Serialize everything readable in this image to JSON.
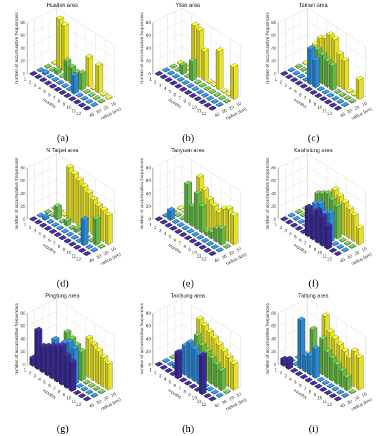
{
  "figure": {
    "zlabel": "number of accumulative frequencies",
    "xlabel": "months",
    "ylabel": "radius (km)",
    "month_ticks": [
      "1",
      "2",
      "3",
      "4",
      "5",
      "6",
      "7",
      "8",
      "9",
      "10",
      "11",
      "12"
    ],
    "radius_ticks": [
      "40",
      "30",
      "20",
      "10"
    ],
    "z_ticks": [
      "0",
      "20",
      "40",
      "60",
      "80"
    ],
    "colors": {
      "r40": "#3b2a9b",
      "r30": "#2b8fe0",
      "r20": "#6cc24a",
      "r10": "#f2ee2e"
    }
  },
  "chart_data": [
    {
      "type": "bar3d",
      "title": "Hualien area",
      "caption": "(a)",
      "zlim": [
        0,
        80
      ],
      "radii": [
        40,
        30,
        20,
        10
      ],
      "months": [
        1,
        2,
        3,
        4,
        5,
        6,
        7,
        8,
        9,
        10,
        11,
        12
      ],
      "series": [
        {
          "radius": 40,
          "values": [
            1,
            1,
            1,
            1,
            1,
            1,
            1,
            1,
            1,
            1,
            1,
            1
          ]
        },
        {
          "radius": 30,
          "values": [
            1,
            3,
            1,
            1,
            1,
            1,
            1,
            28,
            1,
            1,
            1,
            1
          ]
        },
        {
          "radius": 20,
          "values": [
            1,
            1,
            6,
            1,
            30,
            25,
            22,
            26,
            1,
            1,
            1,
            1
          ]
        },
        {
          "radius": 10,
          "values": [
            1,
            75,
            70,
            1,
            1,
            1,
            1,
            45,
            1,
            42,
            1,
            1
          ]
        }
      ]
    },
    {
      "type": "bar3d",
      "title": "Yilan area",
      "caption": "(b)",
      "zlim": [
        0,
        80
      ],
      "radii": [
        40,
        30,
        20,
        10
      ],
      "months": [
        1,
        2,
        3,
        4,
        5,
        6,
        7,
        8,
        9,
        10,
        11,
        12
      ],
      "series": [
        {
          "radius": 40,
          "values": [
            1,
            1,
            1,
            1,
            1,
            1,
            1,
            1,
            1,
            1,
            1,
            1
          ]
        },
        {
          "radius": 30,
          "values": [
            1,
            1,
            1,
            1,
            1,
            1,
            1,
            1,
            1,
            1,
            1,
            1
          ]
        },
        {
          "radius": 20,
          "values": [
            1,
            1,
            14,
            1,
            30,
            1,
            1,
            1,
            1,
            1,
            1,
            1
          ]
        },
        {
          "radius": 10,
          "values": [
            1,
            1,
            1,
            75,
            72,
            45,
            1,
            1,
            60,
            1,
            1,
            50
          ]
        }
      ]
    },
    {
      "type": "bar3d",
      "title": "Tainan area",
      "caption": "(c)",
      "zlim": [
        0,
        80
      ],
      "radii": [
        40,
        30,
        20,
        10
      ],
      "months": [
        1,
        2,
        3,
        4,
        5,
        6,
        7,
        8,
        9,
        10,
        11,
        12
      ],
      "series": [
        {
          "radius": 40,
          "values": [
            1,
            1,
            1,
            1,
            1,
            1,
            1,
            1,
            1,
            1,
            1,
            1
          ]
        },
        {
          "radius": 30,
          "values": [
            1,
            1,
            1,
            1,
            55,
            42,
            1,
            1,
            1,
            1,
            1,
            1
          ]
        },
        {
          "radius": 20,
          "values": [
            1,
            1,
            1,
            35,
            48,
            45,
            40,
            38,
            1,
            1,
            1,
            1
          ]
        },
        {
          "radius": 10,
          "values": [
            1,
            1,
            40,
            55,
            60,
            70,
            68,
            50,
            45,
            1,
            1,
            30
          ]
        }
      ]
    },
    {
      "type": "bar3d",
      "title": "N.Taipei area",
      "caption": "(d)",
      "zlim": [
        0,
        80
      ],
      "radii": [
        40,
        30,
        20,
        10
      ],
      "months": [
        1,
        2,
        3,
        4,
        5,
        6,
        7,
        8,
        9,
        10,
        11,
        12
      ],
      "series": [
        {
          "radius": 40,
          "values": [
            1,
            1,
            1,
            1,
            1,
            1,
            1,
            1,
            1,
            1,
            1,
            1
          ]
        },
        {
          "radius": 30,
          "values": [
            1,
            5,
            1,
            1,
            1,
            1,
            1,
            1,
            1,
            40,
            1,
            1
          ]
        },
        {
          "radius": 20,
          "values": [
            1,
            1,
            20,
            1,
            8,
            1,
            5,
            1,
            1,
            1,
            40,
            1
          ]
        },
        {
          "radius": 10,
          "values": [
            1,
            1,
            1,
            80,
            75,
            70,
            65,
            60,
            55,
            50,
            48,
            45
          ]
        }
      ]
    },
    {
      "type": "bar3d",
      "title": "Taoyuan area",
      "caption": "(e)",
      "zlim": [
        0,
        80
      ],
      "radii": [
        40,
        30,
        20,
        10
      ],
      "months": [
        1,
        2,
        3,
        4,
        5,
        6,
        7,
        8,
        9,
        10,
        11,
        12
      ],
      "series": [
        {
          "radius": 40,
          "values": [
            1,
            1,
            1,
            1,
            1,
            1,
            1,
            1,
            1,
            1,
            1,
            1
          ]
        },
        {
          "radius": 30,
          "values": [
            1,
            15,
            1,
            1,
            1,
            1,
            1,
            1,
            1,
            1,
            1,
            1
          ]
        },
        {
          "radius": 20,
          "values": [
            1,
            1,
            1,
            60,
            30,
            55,
            40,
            5,
            10,
            20,
            25,
            1
          ]
        },
        {
          "radius": 10,
          "values": [
            1,
            1,
            1,
            1,
            70,
            55,
            45,
            40,
            35,
            45,
            50,
            45
          ]
        }
      ]
    },
    {
      "type": "bar3d",
      "title": "Kaohsiung area",
      "caption": "(f)",
      "zlim": [
        0,
        80
      ],
      "radii": [
        40,
        30,
        20,
        10
      ],
      "months": [
        1,
        2,
        3,
        4,
        5,
        6,
        7,
        8,
        9,
        10,
        11,
        12
      ],
      "series": [
        {
          "radius": 40,
          "values": [
            1,
            1,
            1,
            1,
            1,
            45,
            40,
            50,
            45,
            35,
            1,
            1
          ]
        },
        {
          "radius": 30,
          "values": [
            1,
            1,
            1,
            1,
            1,
            45,
            50,
            40,
            45,
            1,
            1,
            1
          ]
        },
        {
          "radius": 20,
          "values": [
            1,
            1,
            1,
            1,
            50,
            55,
            60,
            55,
            50,
            1,
            1,
            1
          ]
        },
        {
          "radius": 10,
          "values": [
            1,
            1,
            1,
            1,
            1,
            1,
            60,
            55,
            50,
            45,
            40,
            25
          ]
        }
      ]
    },
    {
      "type": "bar3d",
      "title": "Pingtung area",
      "caption": "(g)",
      "zlim": [
        0,
        80
      ],
      "radii": [
        40,
        30,
        20,
        10
      ],
      "months": [
        1,
        2,
        3,
        4,
        5,
        6,
        7,
        8,
        9,
        10,
        11,
        12
      ],
      "series": [
        {
          "radius": 40,
          "values": [
            12,
            60,
            40,
            45,
            50,
            55,
            60,
            50,
            45,
            1,
            1,
            1
          ]
        },
        {
          "radius": 30,
          "values": [
            1,
            1,
            1,
            50,
            45,
            55,
            60,
            55,
            1,
            1,
            1,
            1
          ]
        },
        {
          "radius": 20,
          "values": [
            1,
            1,
            1,
            1,
            60,
            55,
            50,
            45,
            1,
            1,
            1,
            1
          ]
        },
        {
          "radius": 10,
          "values": [
            1,
            1,
            1,
            1,
            1,
            1,
            1,
            60,
            55,
            50,
            45,
            40
          ]
        }
      ]
    },
    {
      "type": "bar3d",
      "title": "Taichung area",
      "caption": "(h)",
      "zlim": [
        0,
        80
      ],
      "radii": [
        40,
        30,
        20,
        10
      ],
      "months": [
        1,
        2,
        3,
        4,
        5,
        6,
        7,
        8,
        9,
        10,
        11,
        12
      ],
      "series": [
        {
          "radius": 40,
          "values": [
            1,
            1,
            1,
            1,
            40,
            1,
            1,
            1,
            1,
            60,
            1,
            1
          ]
        },
        {
          "radius": 30,
          "values": [
            1,
            1,
            5,
            30,
            45,
            55,
            50,
            45,
            1,
            1,
            1,
            1
          ]
        },
        {
          "radius": 20,
          "values": [
            1,
            1,
            1,
            1,
            1,
            60,
            50,
            45,
            40,
            35,
            30,
            1
          ]
        },
        {
          "radius": 10,
          "values": [
            1,
            1,
            1,
            1,
            75,
            70,
            65,
            60,
            55,
            50,
            45,
            40
          ]
        }
      ]
    },
    {
      "type": "bar3d",
      "title": "Taitung area",
      "caption": "(i)",
      "zlim": [
        0,
        80
      ],
      "radii": [
        40,
        30,
        20,
        10
      ],
      "months": [
        1,
        2,
        3,
        4,
        5,
        6,
        7,
        8,
        9,
        10,
        11,
        12
      ],
      "series": [
        {
          "radius": 40,
          "values": [
            10,
            15,
            1,
            1,
            1,
            1,
            1,
            1,
            1,
            1,
            1,
            1
          ]
        },
        {
          "radius": 30,
          "values": [
            1,
            1,
            75,
            25,
            30,
            45,
            1,
            1,
            1,
            1,
            1,
            1
          ]
        },
        {
          "radius": 20,
          "values": [
            1,
            1,
            1,
            60,
            1,
            55,
            40,
            35,
            30,
            25,
            20,
            1
          ]
        },
        {
          "radius": 10,
          "values": [
            1,
            1,
            1,
            1,
            80,
            60,
            55,
            50,
            45,
            40,
            55,
            50
          ]
        }
      ]
    }
  ]
}
